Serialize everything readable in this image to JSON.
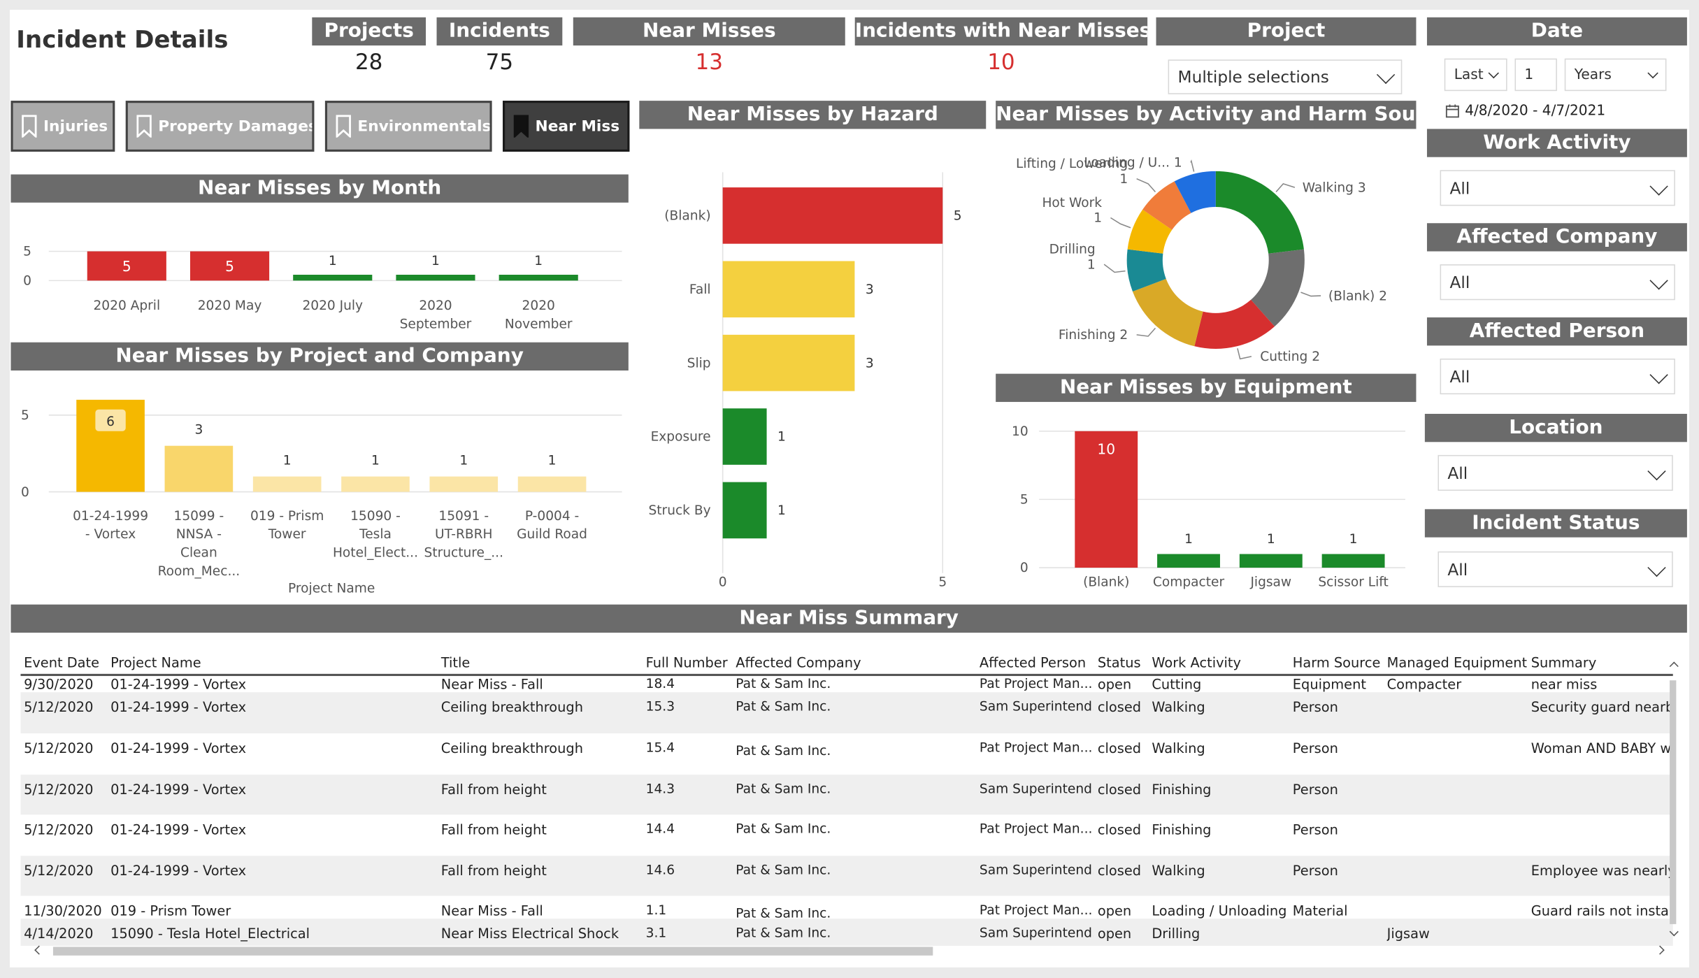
{
  "page_title": "Incident Details",
  "kpis": [
    {
      "label": "Projects",
      "value": "28",
      "color": "#222222"
    },
    {
      "label": "Incidents",
      "value": "75",
      "color": "#222222"
    },
    {
      "label": "Near Misses",
      "value": "13",
      "color": "#d62f2f"
    },
    {
      "label": "Incidents with Near Misses",
      "value": "10",
      "color": "#d62f2f"
    }
  ],
  "nav_buttons": [
    {
      "label": "Injuries",
      "active": false
    },
    {
      "label": "Property Damages",
      "active": false
    },
    {
      "label": "Environmentals",
      "active": false
    },
    {
      "label": "Near Miss",
      "active": true
    }
  ],
  "filters": {
    "project": {
      "title": "Project",
      "value": "Multiple selections"
    },
    "date": {
      "title": "Date",
      "relative_mode": "Last",
      "relative_count": "1",
      "relative_unit": "Years",
      "range": "4/8/2020 - 4/7/2021"
    },
    "work_activity": {
      "title": "Work Activity",
      "value": "All"
    },
    "affected_company": {
      "title": "Affected Company",
      "value": "All"
    },
    "affected_person": {
      "title": "Affected Person",
      "value": "All"
    },
    "location": {
      "title": "Location",
      "value": "All"
    },
    "incident_status": {
      "title": "Incident Status",
      "value": "All"
    }
  },
  "colors": {
    "red": "#d62f2f",
    "green": "#1b8a2a",
    "yellow": "#f4d03f",
    "amber": "#f5b800",
    "header_gray": "#6b6b6b"
  },
  "chart_data": [
    {
      "id": "by_month",
      "type": "bar",
      "title": "Near Misses by Month",
      "categories": [
        "2020 April",
        "2020 May",
        "2020 July",
        "2020 September",
        "2020 November"
      ],
      "category_lines": [
        [
          "2020 April"
        ],
        [
          "2020 May"
        ],
        [
          "2020 July"
        ],
        [
          "2020",
          "September"
        ],
        [
          "2020",
          "November"
        ]
      ],
      "values": [
        5,
        5,
        1,
        1,
        1
      ],
      "colors": [
        "#d62f2f",
        "#d62f2f",
        "#1b8a2a",
        "#1b8a2a",
        "#1b8a2a"
      ],
      "yticks": [
        0,
        5
      ],
      "ylim": [
        0,
        5
      ],
      "grid": true
    },
    {
      "id": "by_project",
      "type": "bar",
      "title": "Near Misses by Project and Company",
      "xlabel": "Project Name",
      "categories": [
        "01-24-1999 - Vortex",
        "15099 - NNSA - Clean Room_Mec...",
        "019 - Prism Tower",
        "15090 - Tesla Hotel_Elect...",
        "15091 - UT-RBRH Structure_...",
        "P-0004 - Guild Road"
      ],
      "category_lines": [
        [
          "01-24-1999",
          "- Vortex"
        ],
        [
          "15099 -",
          "NNSA -",
          "Clean",
          "Room_Mec..."
        ],
        [
          "019 - Prism",
          "Tower"
        ],
        [
          "15090 -",
          "Tesla",
          "Hotel_Elect..."
        ],
        [
          "15091 -",
          "UT-RBRH",
          "Structure_..."
        ],
        [
          "P-0004 -",
          "Guild Road"
        ]
      ],
      "values": [
        6,
        3,
        1,
        1,
        1,
        1
      ],
      "colors": [
        "#f5b800",
        "#f9d66b",
        "#fbe5a6",
        "#fbe5a6",
        "#fbe5a6",
        "#fbe5a6"
      ],
      "yticks": [
        0,
        5
      ],
      "ylim": [
        0,
        6
      ],
      "grid": true
    },
    {
      "id": "by_hazard",
      "type": "bar",
      "orientation": "horizontal",
      "title": "Near Misses by Hazard",
      "categories": [
        "(Blank)",
        "Fall",
        "Slip",
        "Exposure",
        "Struck By"
      ],
      "values": [
        5,
        3,
        3,
        1,
        1
      ],
      "colors": [
        "#d62f2f",
        "#f4d03f",
        "#f4d03f",
        "#1b8a2a",
        "#1b8a2a"
      ],
      "xticks": [
        0,
        5
      ],
      "xlim": [
        0,
        5
      ],
      "grid": true
    },
    {
      "id": "by_activity",
      "type": "pie",
      "title": "Near Misses by Activity and Harm Source",
      "slices": [
        {
          "label": "Walking",
          "value": 3,
          "color": "#1b8a2a"
        },
        {
          "label": "(Blank)",
          "value": 2,
          "color": "#6e6e6e"
        },
        {
          "label": "Cutting",
          "value": 2,
          "color": "#d62f2f"
        },
        {
          "label": "Finishing",
          "value": 2,
          "color": "#d9a927"
        },
        {
          "label": "Drilling",
          "value": 1,
          "color": "#1a8a94"
        },
        {
          "label": "Hot Work",
          "value": 1,
          "color": "#f5b800"
        },
        {
          "label": "Lifting / Lowering",
          "value": 1,
          "color": "#f07c3a"
        },
        {
          "label": "Loading / U...",
          "value": 1,
          "color": "#1f6fe0"
        }
      ]
    },
    {
      "id": "by_equipment",
      "type": "bar",
      "title": "Near Misses by Equipment",
      "categories": [
        "(Blank)",
        "Compacter",
        "Jigsaw",
        "Scissor Lift"
      ],
      "values": [
        10,
        1,
        1,
        1
      ],
      "colors": [
        "#d62f2f",
        "#1b8a2a",
        "#1b8a2a",
        "#1b8a2a"
      ],
      "yticks": [
        0,
        5,
        10
      ],
      "ylim": [
        0,
        10
      ],
      "grid": true
    },
    {
      "id": "summary",
      "type": "table",
      "title": "Near Miss Summary",
      "columns": [
        "Event Date",
        "Project Name",
        "Title",
        "Full Number",
        "Affected Company",
        "Affected Person",
        "Status",
        "Work Activity",
        "Harm Source",
        "Managed Equipment",
        "Summary"
      ],
      "rows": [
        [
          "9/30/2020",
          "01-24-1999 - Vortex",
          "Near Miss - Fall",
          "18.4",
          "Pat & Sam Inc.",
          "Pat Project Man...",
          "open",
          "Cutting",
          "Equipment",
          "Compacter",
          "near miss"
        ],
        [
          "5/12/2020",
          "01-24-1999 - Vortex",
          "Ceiling breakthrough",
          "15.3",
          "Pat & Sam Inc.",
          "Sam Superintend...",
          "closed",
          "Walking",
          "Person",
          "",
          "Security guard nearby"
        ],
        [
          "5/12/2020",
          "01-24-1999 - Vortex",
          "Ceiling breakthrough",
          "15.4",
          "Pat & Sam Inc.",
          "Pat Project Man...",
          "closed",
          "Walking",
          "Person",
          "",
          "Woman AND BABY wa"
        ],
        [
          "5/12/2020",
          "01-24-1999 - Vortex",
          "Fall from height",
          "14.3",
          "Pat & Sam Inc.",
          "Sam Superintend...",
          "closed",
          "Finishing",
          "Person",
          "",
          ""
        ],
        [
          "5/12/2020",
          "01-24-1999 - Vortex",
          "Fall from height",
          "14.4",
          "Pat & Sam Inc.",
          "Pat Project Man...",
          "closed",
          "Finishing",
          "Person",
          "",
          ""
        ],
        [
          "5/12/2020",
          "01-24-1999 - Vortex",
          "Fall from height",
          "14.6",
          "Pat & Sam Inc.",
          "Sam Superintend...",
          "closed",
          "Walking",
          "Person",
          "",
          "Employee was nearly h"
        ],
        [
          "11/30/2020",
          "019 - Prism Tower",
          "Near Miss - Fall",
          "1.1",
          "Pat & Sam Inc.",
          "Pat Project Man...",
          "open",
          "Loading / Unloading",
          "Material",
          "",
          "Guard rails not installe"
        ],
        [
          "4/14/2020",
          "15090 - Tesla Hotel_Electrical",
          "Near Miss Electrical Shock",
          "3.1",
          "Pat & Sam Inc.",
          "Sam Superintend...",
          "open",
          "Drilling",
          "",
          "Jigsaw",
          ""
        ]
      ]
    }
  ]
}
